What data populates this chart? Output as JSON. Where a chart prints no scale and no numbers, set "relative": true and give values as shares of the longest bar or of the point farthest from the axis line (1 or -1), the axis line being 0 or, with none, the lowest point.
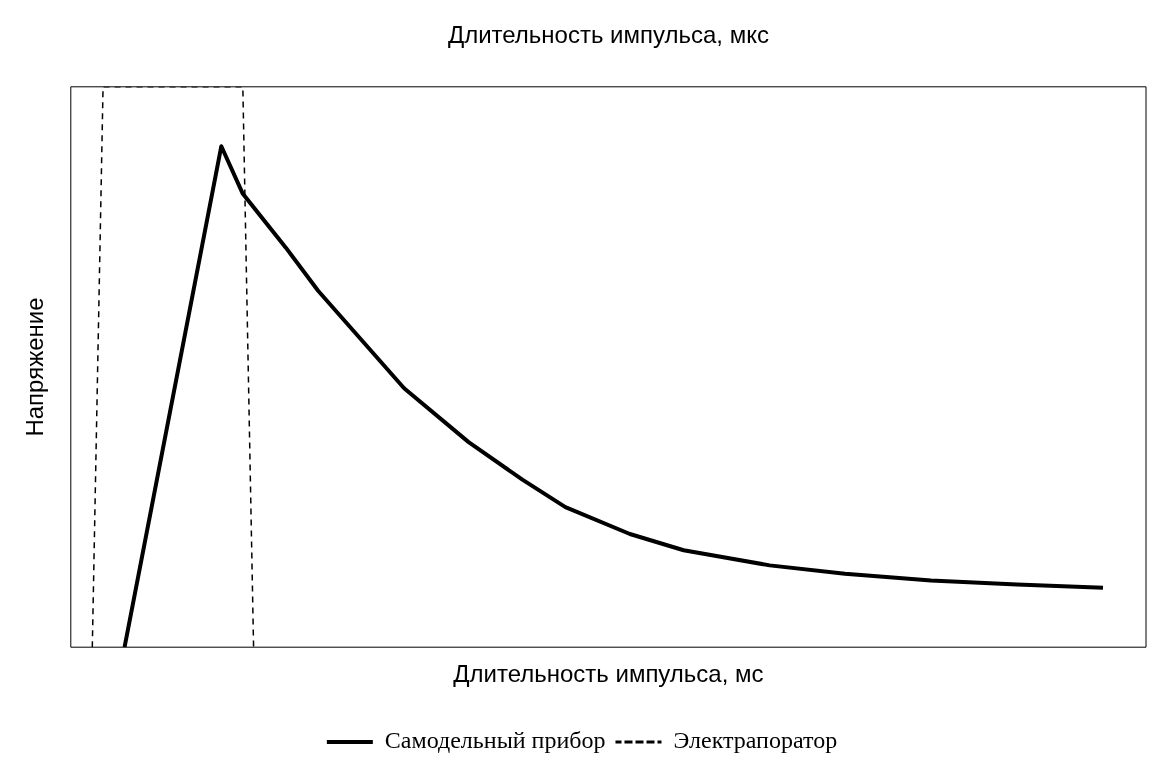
{
  "chart_data": {
    "type": "line",
    "relative": true,
    "xlabel": "Длительность импульса, мс",
    "x2label": "Длительность импульса, мкс",
    "ylabel": "Напряжение",
    "legend": "bottom",
    "marker": "none",
    "grid": false,
    "categories": [
      null,
      null,
      null,
      null,
      null,
      null,
      null,
      null,
      null,
      null,
      null,
      null,
      null,
      null,
      null,
      null,
      null,
      null,
      null,
      null,
      null,
      null,
      null,
      null,
      null,
      null,
      null,
      null,
      null,
      null,
      null,
      null,
      null,
      null,
      null,
      null,
      null,
      null,
      null,
      null,
      null,
      null,
      null,
      null,
      null,
      null,
      null,
      null,
      null,
      null,
      null,
      null,
      null,
      null,
      null,
      null,
      null,
      null,
      null,
      null,
      null,
      null,
      null,
      null,
      null,
      null,
      null,
      null,
      null,
      null,
      null,
      null,
      null,
      null,
      null,
      null,
      null,
      null,
      null,
      null,
      null,
      null,
      null,
      null,
      null,
      null,
      null,
      null,
      null,
      null,
      null,
      null,
      null,
      null,
      null,
      null,
      null,
      null,
      null,
      null,
      null
    ],
    "series": [
      {
        "name": "Самодельный прибор",
        "color": "#000000",
        "line_style": "solid",
        "values": [
          null,
          null,
          null,
          null,
          null,
          0,
          null,
          null,
          null,
          null,
          null,
          null,
          null,
          null,
          0.894,
          null,
          0.809,
          null,
          null,
          null,
          0.713,
          null,
          null,
          0.636,
          null,
          null,
          null,
          0.549,
          null,
          null,
          null,
          0.462,
          null,
          null,
          null,
          null,
          null,
          0.366,
          null,
          null,
          null,
          null,
          0.299,
          null,
          null,
          null,
          0.25,
          null,
          null,
          null,
          null,
          null,
          0.202,
          null,
          null,
          null,
          null,
          0.173,
          null,
          null,
          null,
          null,
          null,
          null,
          null,
          0.146,
          null,
          null,
          null,
          null,
          null,
          null,
          0.131,
          null,
          null,
          null,
          null,
          null,
          null,
          null,
          0.119,
          null,
          null,
          null,
          null,
          null,
          null,
          null,
          0.112,
          null,
          null,
          null,
          null,
          null,
          null,
          null,
          0.106,
          null,
          null,
          null,
          null
        ]
      },
      {
        "name": "Электрапоратор",
        "color": "#000000",
        "line_style": "dashed",
        "values": [
          null,
          null,
          0,
          1,
          null,
          null,
          null,
          null,
          null,
          null,
          null,
          null,
          null,
          null,
          null,
          null,
          1,
          0,
          null,
          null,
          null,
          null,
          null,
          null,
          null,
          null,
          null,
          null,
          null,
          null,
          null,
          null,
          null,
          null,
          null,
          null,
          null,
          null,
          null,
          null,
          null,
          null,
          null,
          null,
          null,
          null,
          null,
          null,
          null,
          null,
          null,
          null,
          null,
          null,
          null,
          null,
          null,
          null,
          null,
          null,
          null,
          null,
          null,
          null,
          null,
          null,
          null,
          null,
          null,
          null,
          null,
          null,
          null,
          null,
          null,
          null,
          null,
          null,
          null,
          null,
          null,
          null,
          null,
          null,
          null,
          null,
          null,
          null,
          null,
          null,
          null,
          null,
          null,
          null,
          null,
          null,
          null,
          null,
          null,
          null,
          null
        ]
      }
    ]
  }
}
